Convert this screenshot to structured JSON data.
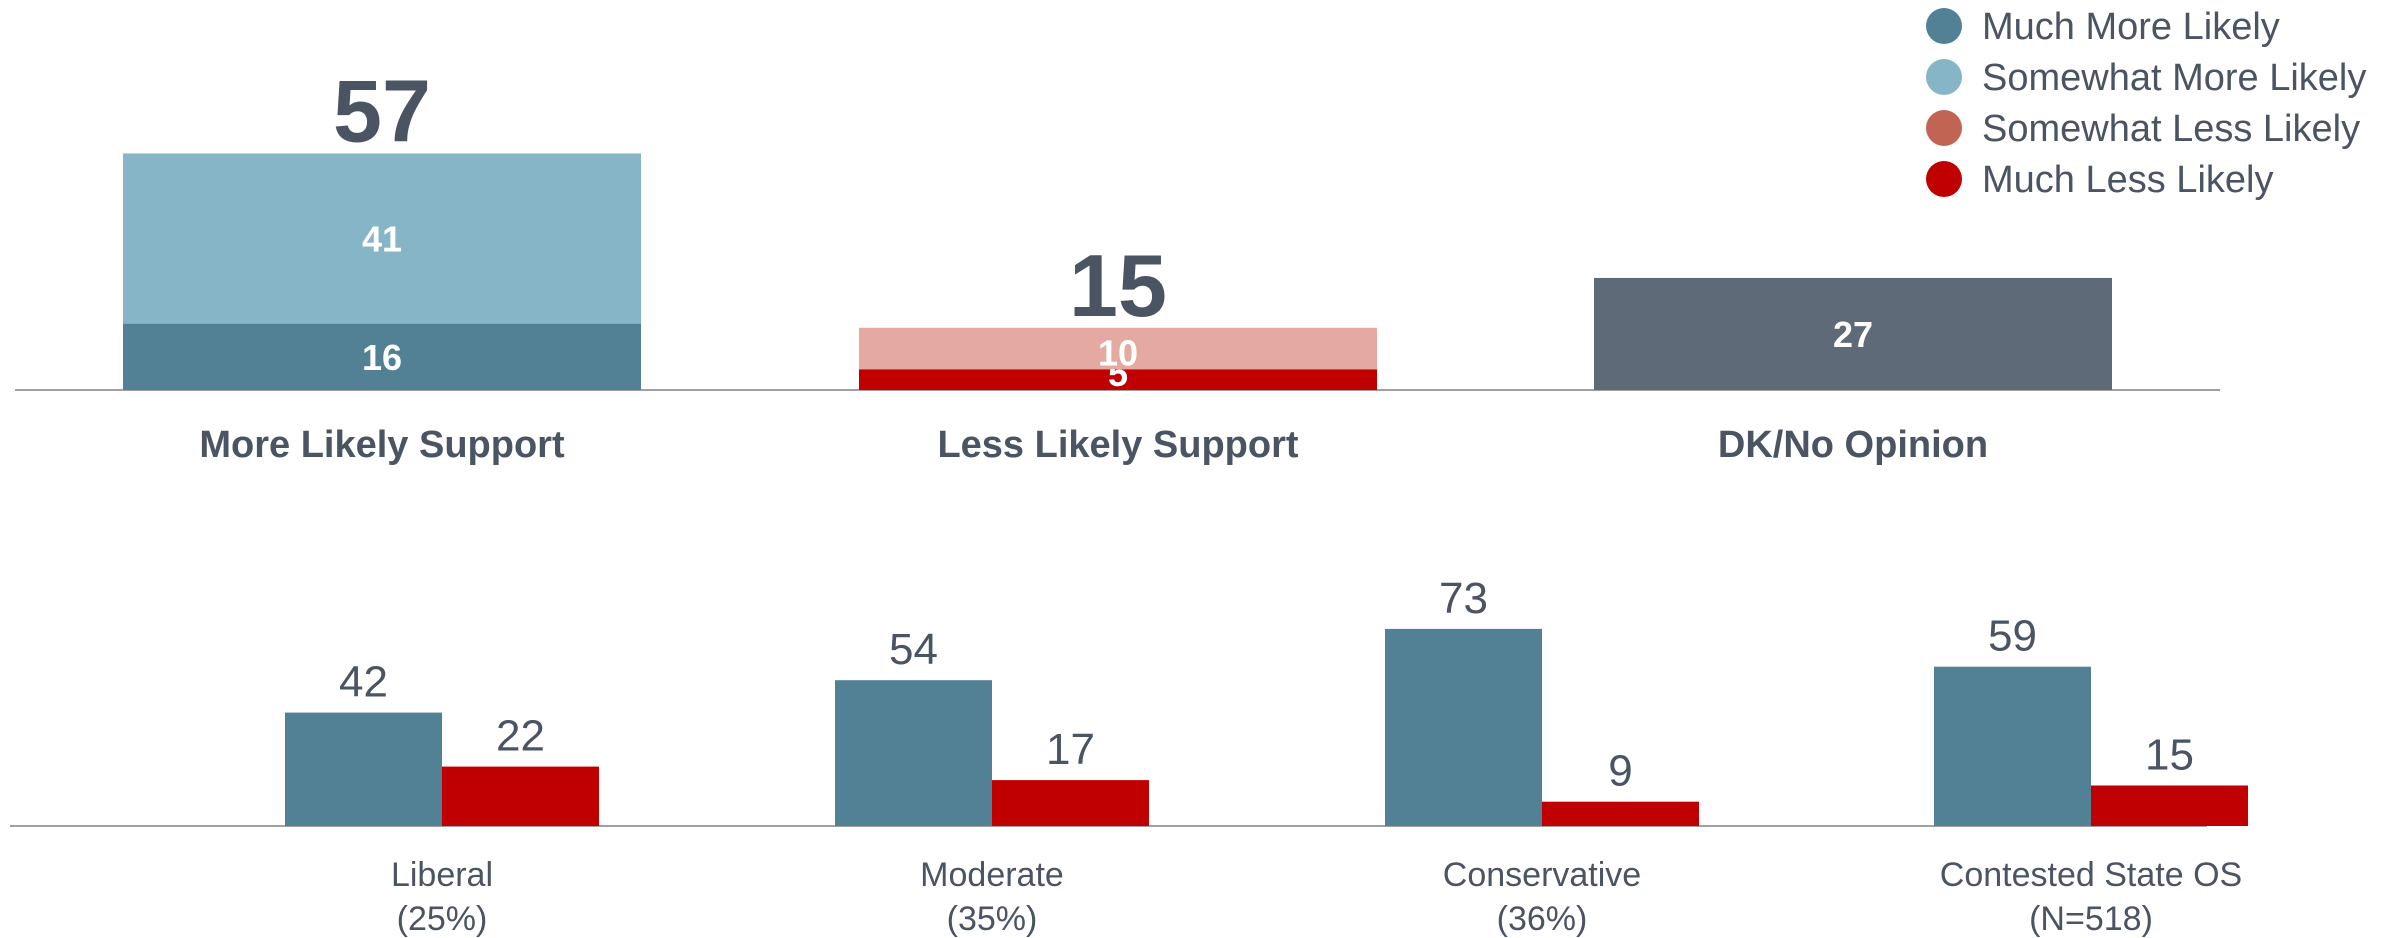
{
  "colors": {
    "much_more": "#528196",
    "somewhat_more": "#86b5c7",
    "somewhat_less": "#e4aaa2",
    "much_less": "#c00000",
    "dk": "#5e6a78",
    "legend_somewhat_less": "#c26453",
    "text": "#4a5463",
    "axis": "#a0a0a0"
  },
  "legend": [
    {
      "label": "Much More Likely",
      "color_key": "much_more"
    },
    {
      "label": "Somewhat More Likely",
      "color_key": "somewhat_more"
    },
    {
      "label": "Somewhat Less Likely",
      "color_key": "legend_somewhat_less"
    },
    {
      "label": "Much Less Likely",
      "color_key": "much_less"
    }
  ],
  "chart_data": [
    {
      "type": "bar",
      "stacked": true,
      "categories": [
        "More Likely Support",
        "Less Likely Support",
        "DK/No Opinion"
      ],
      "totals": [
        57,
        15,
        null
      ],
      "stacks": [
        {
          "segments": [
            {
              "value": 16,
              "color_key": "much_more"
            },
            {
              "value": 41,
              "color_key": "somewhat_more"
            }
          ]
        },
        {
          "segments": [
            {
              "value": 5,
              "color_key": "much_less"
            },
            {
              "value": 10,
              "color_key": "somewhat_less"
            }
          ]
        },
        {
          "segments": [
            {
              "value": 27,
              "color_key": "dk"
            }
          ]
        }
      ],
      "ylim": [
        0,
        60
      ],
      "legend_position": "top-right"
    },
    {
      "type": "bar",
      "categories": [
        {
          "name": "Liberal",
          "sub": "(25%)"
        },
        {
          "name": "Moderate",
          "sub": "(35%)"
        },
        {
          "name": "Conservative",
          "sub": "(36%)"
        },
        {
          "name": "Contested State OS",
          "sub": "(N=518)"
        }
      ],
      "series": [
        {
          "values": [
            42,
            54,
            73,
            59
          ],
          "color_key": "much_more"
        },
        {
          "values": [
            22,
            17,
            9,
            15
          ],
          "color_key": "much_less"
        }
      ],
      "ylim": [
        0,
        80
      ]
    }
  ]
}
